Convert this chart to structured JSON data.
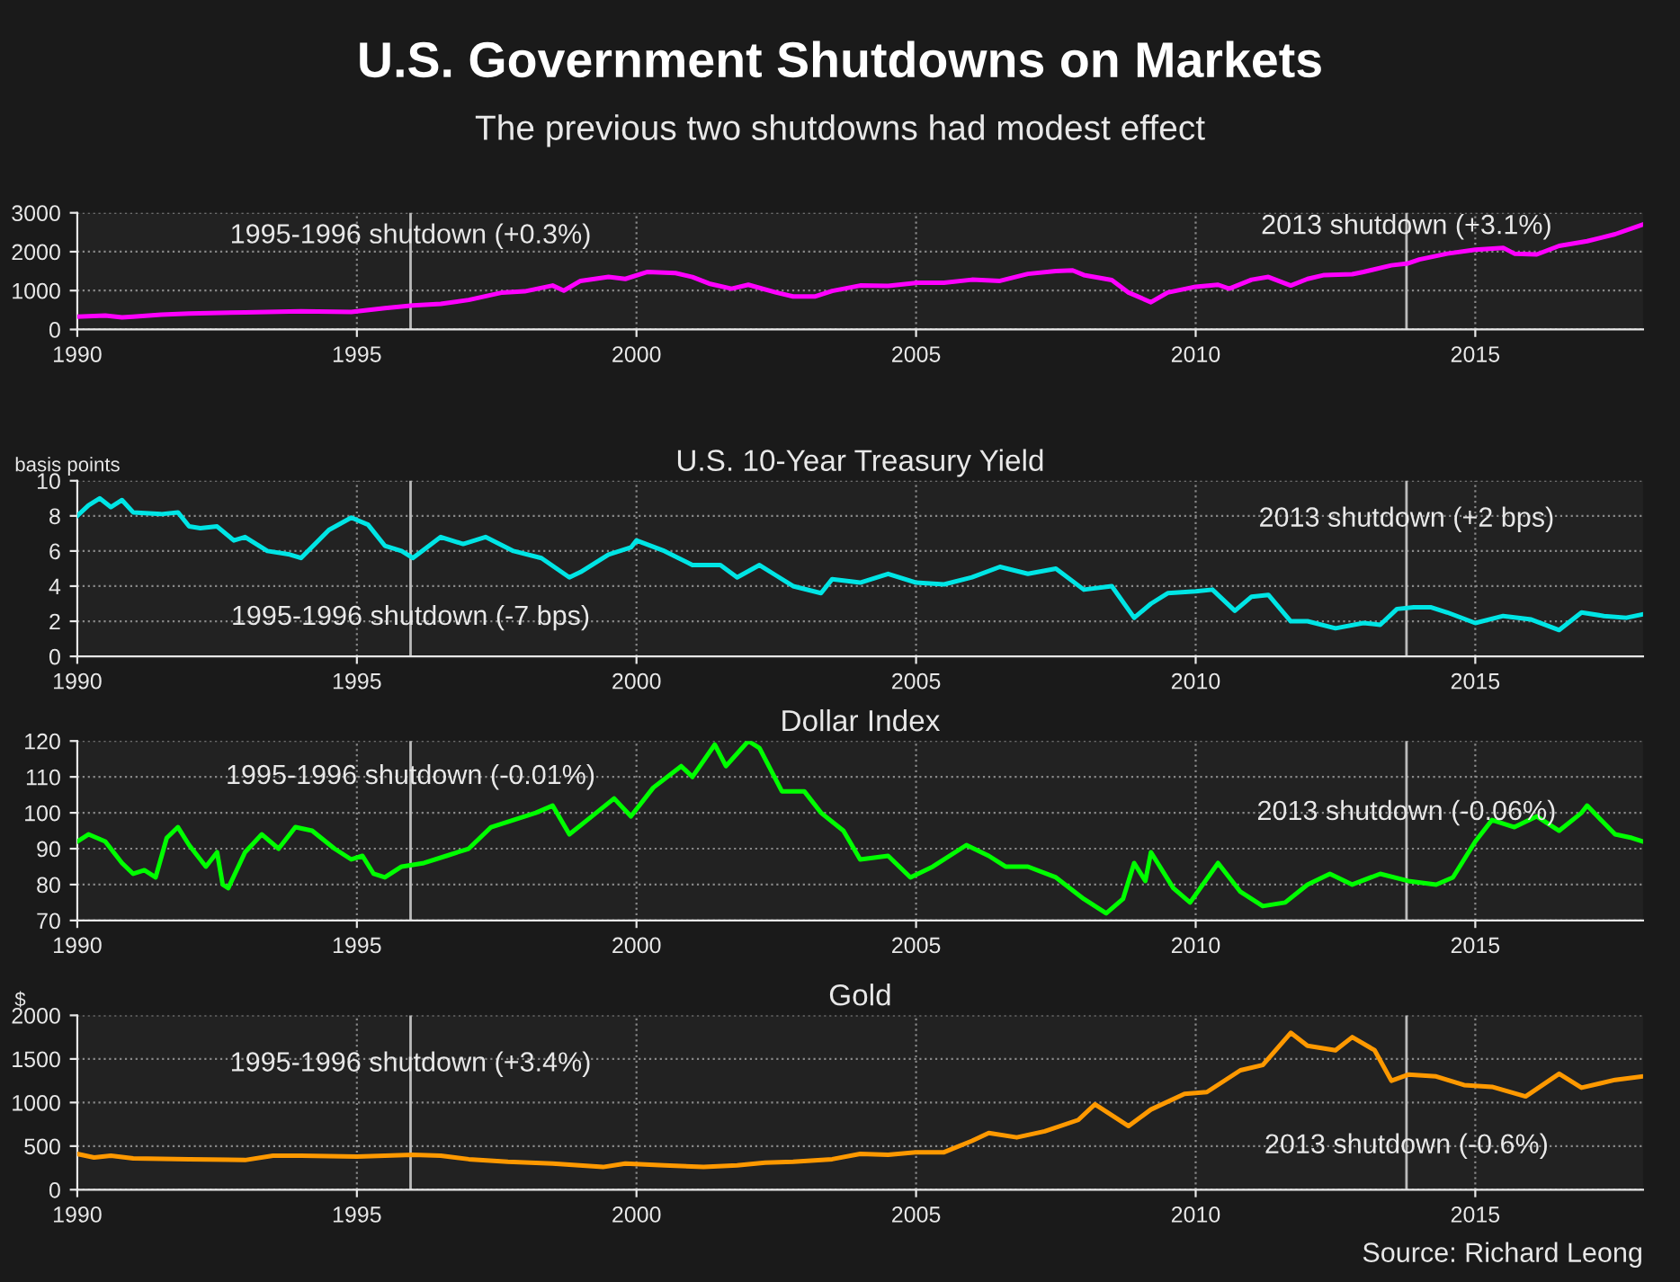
{
  "chart_data": [
    {
      "type": "line",
      "title": "U.S. Government Shutdowns on Markets",
      "subtitle": "The previous two shutdowns had modest effect",
      "xlim": [
        1990,
        2018
      ],
      "xticks": [
        1990,
        1995,
        2000,
        2005,
        2010,
        2015
      ],
      "ylim": [
        0,
        3000
      ],
      "yticks": [
        0,
        1000,
        2000,
        3000
      ],
      "grid": true,
      "marker": "none",
      "line_style": "solid",
      "ref_lines": [
        {
          "axis": "x",
          "value": 1995.96,
          "label": "1995-1996 shutdown (+0.3%)",
          "color": "#bbbbbb"
        },
        {
          "axis": "x",
          "value": 2013.77,
          "label": "2013 shutdown (+3.1%)",
          "color": "#bbbbbb"
        }
      ],
      "series": [
        {
          "color": "#ff00ff",
          "x": [
            1990,
            1990.5,
            1990.8,
            1991,
            1991.5,
            1992,
            1993,
            1994,
            1994.9,
            1995.5,
            1996,
            1996.5,
            1997,
            1997.6,
            1998,
            1998.5,
            1998.7,
            1999,
            1999.5,
            1999.8,
            2000.2,
            2000.7,
            2001,
            2001.3,
            2001.7,
            2002,
            2002.5,
            2002.8,
            2003.2,
            2003.5,
            2004,
            2004.5,
            2005,
            2005.5,
            2006,
            2006.5,
            2007,
            2007.5,
            2007.8,
            2008,
            2008.5,
            2008.8,
            2009.2,
            2009.5,
            2010,
            2010.4,
            2010.6,
            2011,
            2011.3,
            2011.7,
            2012,
            2012.3,
            2012.8,
            2013,
            2013.5,
            2013.8,
            2014,
            2014.5,
            2015,
            2015.5,
            2015.7,
            2016.1,
            2016.5,
            2017,
            2017.5,
            2018
          ],
          "values": [
            330,
            360,
            310,
            330,
            380,
            410,
            440,
            470,
            450,
            550,
            620,
            660,
            760,
            950,
            980,
            1130,
            1000,
            1250,
            1350,
            1300,
            1480,
            1450,
            1350,
            1180,
            1050,
            1150,
            950,
            850,
            850,
            990,
            1130,
            1120,
            1200,
            1200,
            1280,
            1250,
            1430,
            1500,
            1520,
            1400,
            1270,
            950,
            700,
            950,
            1100,
            1150,
            1050,
            1280,
            1350,
            1130,
            1300,
            1400,
            1420,
            1480,
            1650,
            1700,
            1800,
            1950,
            2050,
            2100,
            1950,
            1930,
            2150,
            2270,
            2450,
            2700
          ]
        }
      ]
    },
    {
      "type": "line",
      "title": "U.S. 10-Year Treasury Yield",
      "ylabel": "basis points",
      "xlim": [
        1990,
        2018
      ],
      "xticks": [
        1990,
        1995,
        2000,
        2005,
        2010,
        2015
      ],
      "ylim": [
        0,
        10
      ],
      "yticks": [
        0,
        2,
        4,
        6,
        8,
        10
      ],
      "grid": true,
      "marker": "none",
      "line_style": "solid",
      "ref_lines": [
        {
          "axis": "x",
          "value": 1995.96,
          "label": "1995-1996 shutdown (-7 bps)",
          "color": "#bbbbbb"
        },
        {
          "axis": "x",
          "value": 2013.77,
          "label": "2013 shutdown (+2 bps)",
          "color": "#bbbbbb"
        }
      ],
      "series": [
        {
          "color": "#00e5e5",
          "x": [
            1990,
            1990.2,
            1990.4,
            1990.6,
            1990.8,
            1991,
            1991.5,
            1991.8,
            1992,
            1992.2,
            1992.5,
            1992.8,
            1993,
            1993.4,
            1993.8,
            1994,
            1994.5,
            1994.9,
            1995.2,
            1995.5,
            1995.8,
            1996,
            1996.5,
            1996.9,
            1997.3,
            1997.8,
            1998.3,
            1998.8,
            1999,
            1999.5,
            1999.9,
            2000,
            2000.5,
            2001,
            2001.5,
            2001.8,
            2002.2,
            2002.5,
            2002.8,
            2003.3,
            2003.5,
            2004,
            2004.5,
            2005,
            2005.5,
            2006,
            2006.5,
            2007,
            2007.5,
            2008,
            2008.5,
            2008.9,
            2009.2,
            2009.5,
            2010,
            2010.3,
            2010.7,
            2011,
            2011.3,
            2011.7,
            2012,
            2012.5,
            2013,
            2013.3,
            2013.6,
            2013.9,
            2014.2,
            2014.5,
            2015,
            2015.5,
            2016,
            2016.5,
            2016.9,
            2017.3,
            2017.7,
            2018
          ],
          "values": [
            8.0,
            8.6,
            9.0,
            8.5,
            8.9,
            8.2,
            8.1,
            8.2,
            7.4,
            7.3,
            7.4,
            6.6,
            6.8,
            6.0,
            5.8,
            5.6,
            7.2,
            7.9,
            7.5,
            6.3,
            6.0,
            5.6,
            6.8,
            6.4,
            6.8,
            6.0,
            5.6,
            4.5,
            4.8,
            5.8,
            6.2,
            6.6,
            6.0,
            5.2,
            5.2,
            4.5,
            5.2,
            4.6,
            4.0,
            3.6,
            4.4,
            4.2,
            4.7,
            4.2,
            4.1,
            4.5,
            5.1,
            4.7,
            5.0,
            3.8,
            4.0,
            2.2,
            3.0,
            3.6,
            3.7,
            3.8,
            2.6,
            3.4,
            3.5,
            2.0,
            2.0,
            1.6,
            1.9,
            1.8,
            2.7,
            2.8,
            2.8,
            2.5,
            1.9,
            2.3,
            2.1,
            1.5,
            2.5,
            2.3,
            2.2,
            2.4
          ]
        }
      ]
    },
    {
      "type": "line",
      "title": "Dollar Index",
      "xlim": [
        1990,
        2018
      ],
      "xticks": [
        1990,
        1995,
        2000,
        2005,
        2010,
        2015
      ],
      "ylim": [
        70,
        120
      ],
      "yticks": [
        70,
        80,
        90,
        100,
        110,
        120
      ],
      "grid": true,
      "marker": "none",
      "line_style": "solid",
      "ref_lines": [
        {
          "axis": "x",
          "value": 1995.96,
          "label": "1995-1996 shutdown (-0.01%)",
          "color": "#bbbbbb"
        },
        {
          "axis": "x",
          "value": 2013.77,
          "label": "2013 shutdown (-0.06%)",
          "color": "#bbbbbb"
        }
      ],
      "series": [
        {
          "color": "#00ff00",
          "x": [
            1990,
            1990.2,
            1990.5,
            1990.8,
            1991,
            1991.2,
            1991.4,
            1991.6,
            1991.8,
            1992,
            1992.3,
            1992.5,
            1992.6,
            1992.7,
            1993,
            1993.3,
            1993.6,
            1993.9,
            1994.2,
            1994.6,
            1994.9,
            1995.1,
            1995.3,
            1995.5,
            1995.8,
            1996.2,
            1996.6,
            1997,
            1997.4,
            1997.8,
            1998.2,
            1998.5,
            1998.8,
            1999.2,
            1999.6,
            1999.9,
            2000.3,
            2000.8,
            2001,
            2001.4,
            2001.6,
            2002,
            2002.2,
            2002.6,
            2003,
            2003.3,
            2003.7,
            2004,
            2004.5,
            2004.9,
            2005.3,
            2005.9,
            2006.3,
            2006.6,
            2007,
            2007.5,
            2008,
            2008.4,
            2008.7,
            2008.9,
            2009.1,
            2009.2,
            2009.6,
            2009.9,
            2010.4,
            2010.8,
            2011.2,
            2011.6,
            2012,
            2012.4,
            2012.8,
            2013.3,
            2013.8,
            2014.3,
            2014.6,
            2015,
            2015.3,
            2015.7,
            2016.1,
            2016.5,
            2016.9,
            2017,
            2017.5,
            2017.8,
            2018
          ],
          "values": [
            92,
            94,
            92,
            86,
            83,
            84,
            82,
            93,
            96,
            91,
            85,
            89,
            80,
            79,
            89,
            94,
            90,
            96,
            95,
            90,
            87,
            88,
            83,
            82,
            85,
            86,
            88,
            90,
            96,
            98,
            100,
            102,
            94,
            99,
            104,
            99,
            107,
            113,
            110,
            119,
            113,
            120,
            118,
            106,
            106,
            100,
            95,
            87,
            88,
            82,
            85,
            91,
            88,
            85,
            85,
            82,
            76,
            72,
            76,
            86,
            81,
            89,
            79,
            75,
            86,
            78,
            74,
            75,
            80,
            83,
            80,
            83,
            81,
            80,
            82,
            92,
            98,
            96,
            99,
            95,
            100,
            102,
            94,
            93,
            92
          ]
        }
      ]
    },
    {
      "type": "line",
      "title": "Gold",
      "ylabel": "$",
      "xlim": [
        1990,
        2018
      ],
      "xticks": [
        1990,
        1995,
        2000,
        2005,
        2010,
        2015
      ],
      "ylim": [
        0,
        2000
      ],
      "yticks": [
        0,
        500,
        1000,
        1500,
        2000
      ],
      "grid": true,
      "marker": "none",
      "line_style": "solid",
      "annotations": [
        "Source: Richard Leong"
      ],
      "ref_lines": [
        {
          "axis": "x",
          "value": 1995.96,
          "label": "1995-1996 shutdown (+3.4%)",
          "color": "#bbbbbb"
        },
        {
          "axis": "x",
          "value": 2013.77,
          "label": "2013 shutdown (-0.6%)",
          "color": "#bbbbbb"
        }
      ],
      "series": [
        {
          "color": "#ff9900",
          "x": [
            1990,
            1990.3,
            1990.6,
            1991,
            1992,
            1993,
            1993.5,
            1994,
            1995,
            1996,
            1996.5,
            1997,
            1997.7,
            1998.5,
            1999.4,
            1999.8,
            2000.5,
            2001.2,
            2001.8,
            2002.3,
            2002.8,
            2003.5,
            2004,
            2004.5,
            2005,
            2005.5,
            2006,
            2006.3,
            2006.8,
            2007.3,
            2007.9,
            2008.2,
            2008.8,
            2009.2,
            2009.8,
            2010.2,
            2010.8,
            2011.2,
            2011.7,
            2012,
            2012.5,
            2012.8,
            2013.2,
            2013.5,
            2013.8,
            2014.3,
            2014.8,
            2015.3,
            2015.9,
            2016.5,
            2016.9,
            2017.5,
            2018
          ],
          "values": [
            410,
            370,
            390,
            360,
            350,
            340,
            390,
            390,
            380,
            400,
            390,
            350,
            320,
            300,
            260,
            300,
            280,
            260,
            280,
            310,
            320,
            350,
            410,
            400,
            430,
            430,
            560,
            650,
            600,
            670,
            800,
            980,
            730,
            920,
            1100,
            1120,
            1370,
            1430,
            1800,
            1650,
            1600,
            1750,
            1600,
            1250,
            1320,
            1300,
            1200,
            1180,
            1070,
            1330,
            1170,
            1260,
            1300
          ]
        }
      ]
    }
  ]
}
